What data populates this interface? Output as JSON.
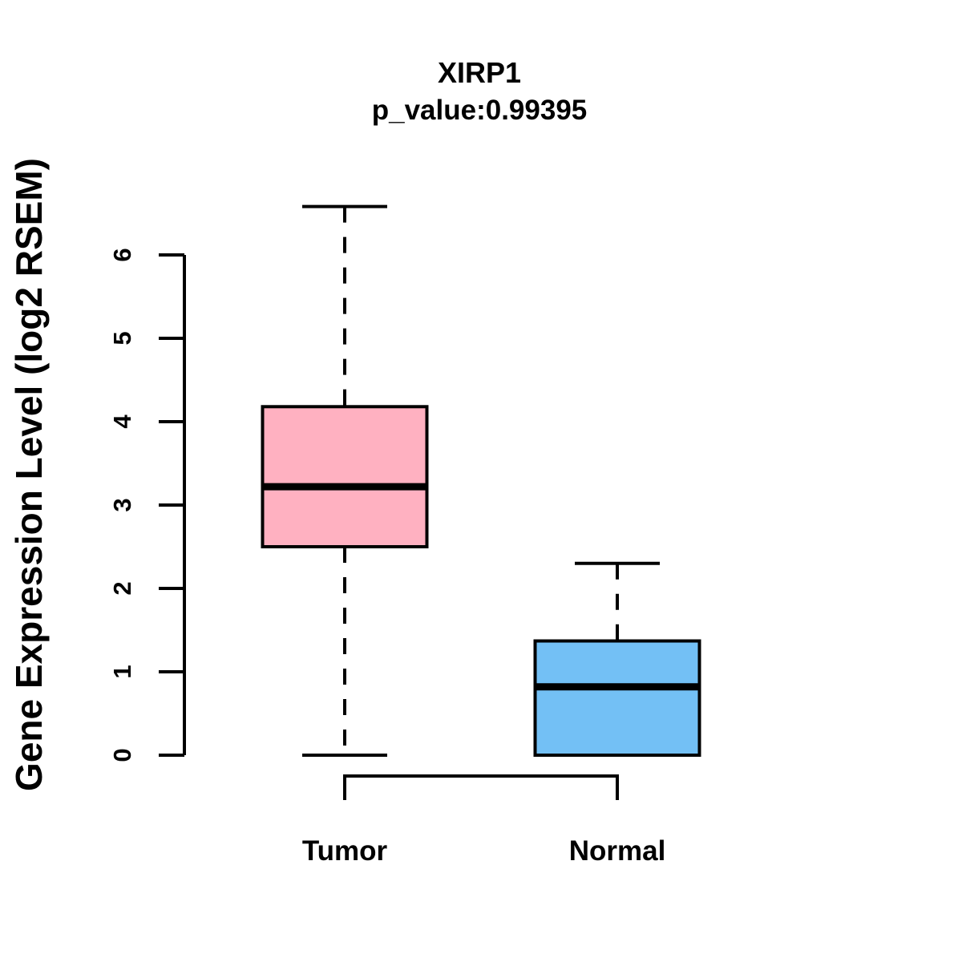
{
  "figure": {
    "background": "#ffffff",
    "line_color": "#000000"
  },
  "chart_data": {
    "type": "boxplot",
    "title": "XIRP1",
    "subtitle": "p_value:0.99395",
    "gene": "XIRP1",
    "p_value_text": "0.99395",
    "ylabel": "Gene Expression Level (log2 RSEM)",
    "xlabel": "",
    "yticks": [
      0,
      1,
      2,
      3,
      4,
      5,
      6
    ],
    "ylim": [
      0,
      6.6
    ],
    "grid": false,
    "legend_position": "none",
    "categories": [
      "Tumor",
      "Normal"
    ],
    "series": [
      {
        "name": "Tumor",
        "fill": "#FFB1C1",
        "whisker_low": 0,
        "q1": 2.5,
        "median": 3.22,
        "q3": 4.18,
        "whisker_high": 6.58
      },
      {
        "name": "Normal",
        "fill": "#73C0F5",
        "whisker_low": 0,
        "q1": 0,
        "median": 0.82,
        "q3": 1.37,
        "whisker_high": 2.3
      }
    ],
    "comparison_bracket": {
      "from": "Tumor",
      "to": "Normal"
    }
  }
}
